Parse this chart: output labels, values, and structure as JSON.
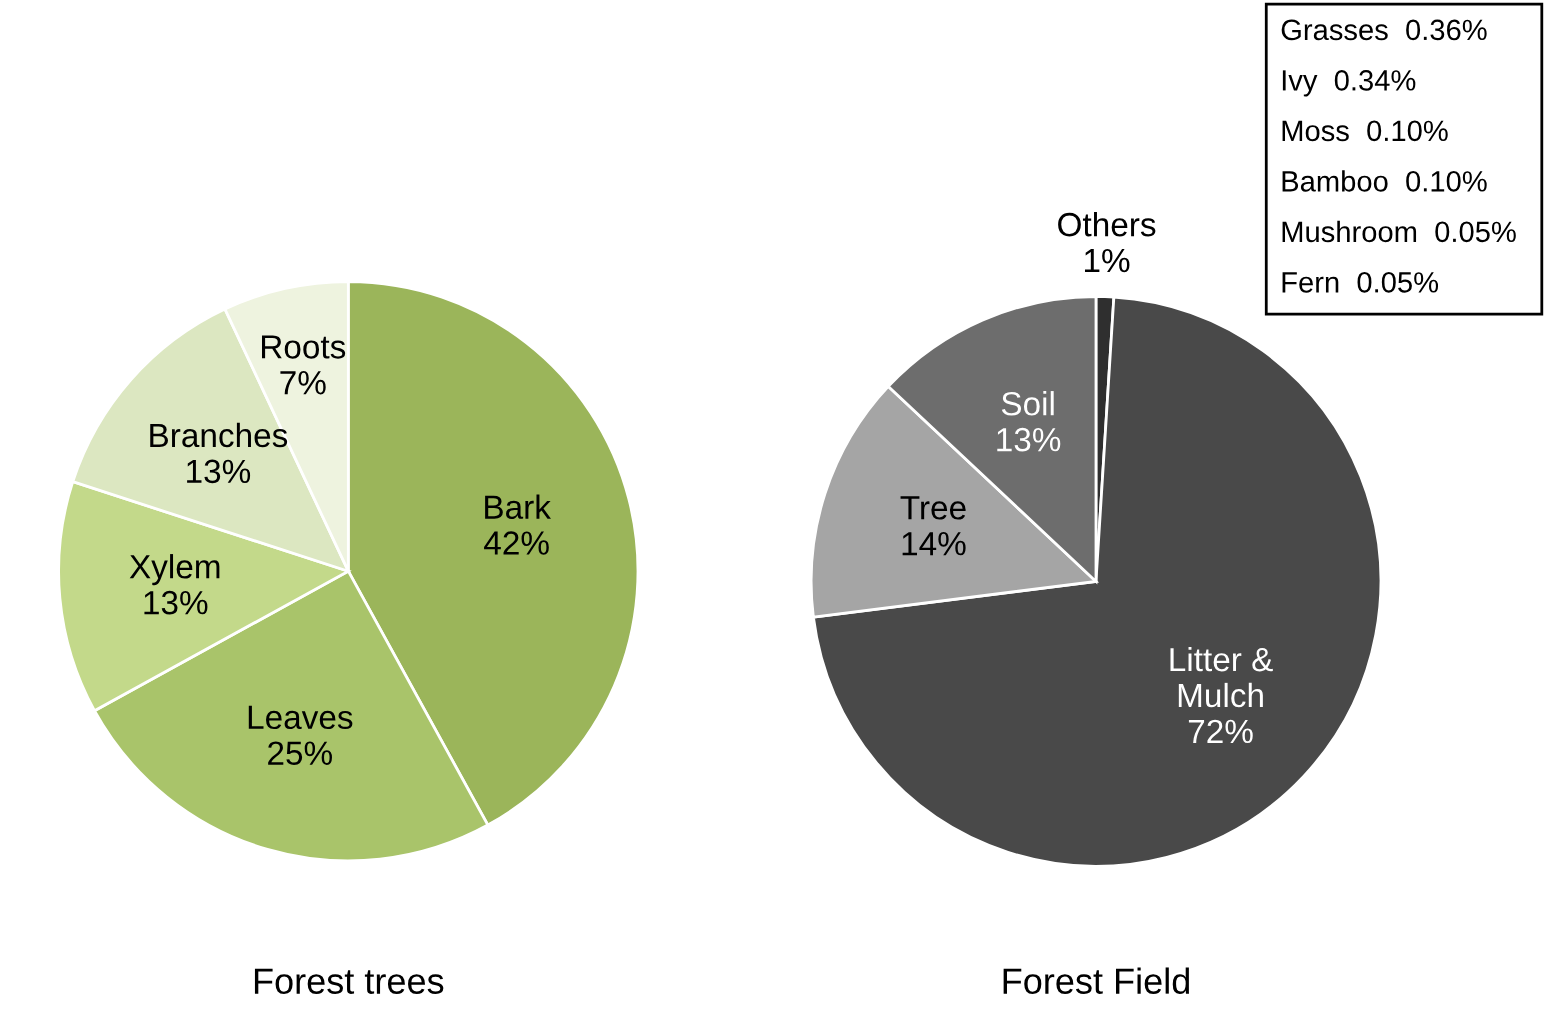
{
  "chart_data": [
    {
      "type": "pie",
      "title": "Forest trees",
      "categories": [
        "Bark",
        "Leaves",
        "Xylem",
        "Branches",
        "Roots"
      ],
      "values": [
        42,
        25,
        13,
        13,
        7
      ],
      "colors": [
        "#9bb55a",
        "#a9c46a",
        "#c3d98a",
        "#dce7c1",
        "#eef3df"
      ],
      "value_labels": [
        "42%",
        "25%",
        "13%",
        "13%",
        "7%"
      ]
    },
    {
      "type": "pie",
      "title": "Forest Field",
      "categories": [
        "Others",
        "Litter &\nMulch",
        "Tree",
        "Soil"
      ],
      "values": [
        1,
        72,
        14,
        13
      ],
      "colors": [
        "#2f2f2f",
        "#494949",
        "#a5a5a5",
        "#6d6d6d"
      ],
      "value_labels": [
        "1%",
        "72%",
        "14%",
        "13%"
      ],
      "annotations": [
        "Grasses  0.36%",
        "Ivy  0.34%",
        "Moss  0.10%",
        "Bamboo  0.10%",
        "Mushroom  0.05%",
        "Fern  0.05%"
      ]
    }
  ]
}
